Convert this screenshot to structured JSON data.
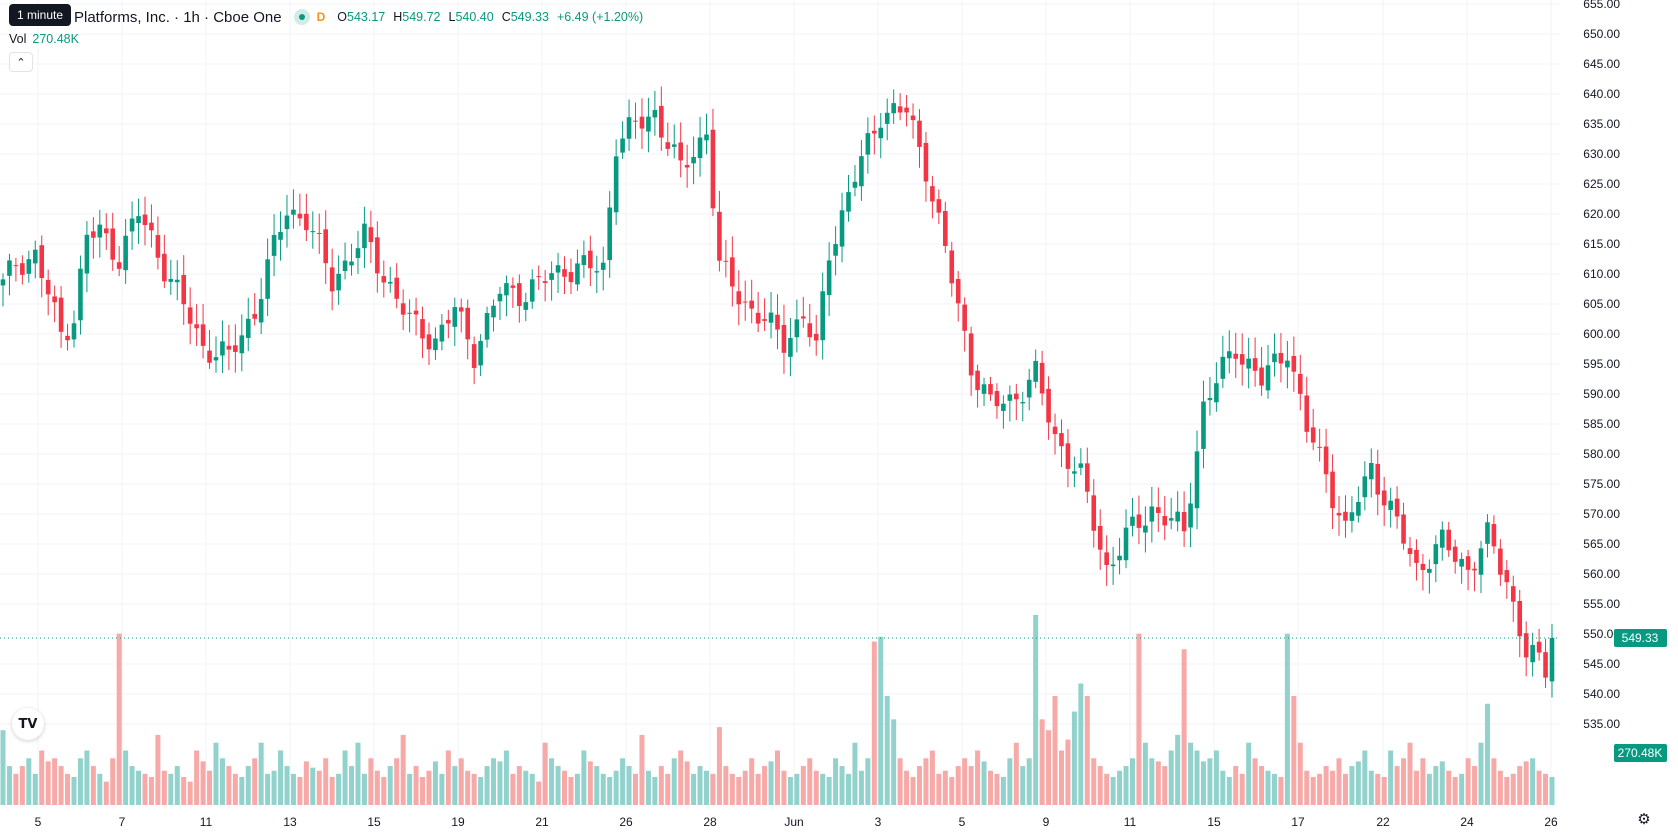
{
  "header": {
    "tooltip": "1 minute",
    "symbol_title": "Platforms, Inc. · 1h · Cboe One",
    "delay_badge": "D",
    "open_label": "O",
    "open_value": "543.17",
    "high_label": "H",
    "high_value": "549.72",
    "low_label": "L",
    "low_value": "540.40",
    "close_label": "C",
    "close_value": "549.33",
    "change": "+6.49 (+1.20%)"
  },
  "volume_legend": {
    "label": "Vol",
    "value": "270.48K"
  },
  "collapse_icon": "chevron-up-icon",
  "logo": "tradingview-logo",
  "settings_icon": "gear-icon",
  "colors": {
    "up": "#089981",
    "down": "#f23645",
    "up_volume": "#92d2cc",
    "down_volume": "#f7a9a7",
    "grid": "#f0f3fa"
  },
  "chart_data": {
    "type": "candlestick",
    "interval": "1h",
    "y_ticks": [
      "655.00",
      "650.00",
      "645.00",
      "640.00",
      "635.00",
      "630.00",
      "625.00",
      "620.00",
      "615.00",
      "610.00",
      "605.00",
      "600.00",
      "595.00",
      "590.00",
      "585.00",
      "580.00",
      "575.00",
      "570.00",
      "565.00",
      "560.00",
      "555.00",
      "550.00",
      "545.00",
      "540.00",
      "535.00"
    ],
    "ylim": [
      532,
      657
    ],
    "x_ticks": [
      "5",
      "7",
      "11",
      "13",
      "15",
      "19",
      "21",
      "26",
      "28",
      "Jun",
      "3",
      "5",
      "9",
      "11",
      "15",
      "17",
      "22",
      "24",
      "26"
    ],
    "last_price": "549.33",
    "last_volume": "270.48K",
    "price_anchors": [
      [
        0,
        608
      ],
      [
        2,
        612
      ],
      [
        5,
        613
      ],
      [
        9,
        600
      ],
      [
        11,
        603
      ],
      [
        13,
        616
      ],
      [
        15,
        617
      ],
      [
        18,
        613
      ],
      [
        21,
        620
      ],
      [
        23,
        616
      ],
      [
        26,
        609
      ],
      [
        31,
        598
      ],
      [
        35,
        596
      ],
      [
        39,
        604
      ],
      [
        44,
        621
      ],
      [
        47,
        619
      ],
      [
        51,
        609
      ],
      [
        56,
        616
      ],
      [
        59,
        610
      ],
      [
        63,
        602
      ],
      [
        67,
        599
      ],
      [
        70,
        604
      ],
      [
        73,
        597
      ],
      [
        77,
        607
      ],
      [
        81,
        607
      ],
      [
        87,
        611
      ],
      [
        93,
        611
      ],
      [
        95,
        632
      ],
      [
        101,
        637
      ],
      [
        105,
        627
      ],
      [
        109,
        634
      ],
      [
        111,
        611
      ],
      [
        116,
        604
      ],
      [
        121,
        599
      ],
      [
        124,
        603
      ],
      [
        126,
        597
      ],
      [
        128,
        614
      ],
      [
        132,
        626
      ],
      [
        136,
        637
      ],
      [
        140,
        637
      ],
      [
        143,
        628
      ],
      [
        147,
        609
      ],
      [
        150,
        595
      ],
      [
        153,
        588
      ],
      [
        156,
        589
      ],
      [
        160,
        593
      ],
      [
        163,
        583
      ],
      [
        167,
        576
      ],
      [
        171,
        561
      ],
      [
        174,
        566
      ],
      [
        178,
        571
      ],
      [
        183,
        567
      ],
      [
        186,
        588
      ],
      [
        191,
        598
      ],
      [
        195,
        592
      ],
      [
        199,
        598
      ],
      [
        202,
        584
      ],
      [
        205,
        577
      ],
      [
        208,
        567
      ],
      [
        212,
        578
      ],
      [
        216,
        568
      ],
      [
        219,
        561
      ],
      [
        223,
        565
      ],
      [
        227,
        561
      ],
      [
        230,
        566
      ],
      [
        233,
        559
      ],
      [
        236,
        547
      ],
      [
        239,
        544
      ],
      [
        240,
        549
      ]
    ],
    "volume_values": [
      48,
      25,
      20,
      25,
      30,
      20,
      35,
      28,
      30,
      25,
      20,
      18,
      30,
      35,
      25,
      20,
      15,
      30,
      110,
      35,
      25,
      22,
      20,
      18,
      45,
      22,
      20,
      25,
      18,
      15,
      35,
      28,
      22,
      40,
      30,
      25,
      20,
      18,
      25,
      30,
      40,
      20,
      22,
      35,
      25,
      20,
      18,
      28,
      24,
      22,
      30,
      18,
      20,
      35,
      25,
      40,
      20,
      30,
      22,
      18,
      25,
      30,
      45,
      20,
      25,
      18,
      22,
      28,
      20,
      35,
      25,
      30,
      22,
      20,
      18,
      25,
      30,
      28,
      35,
      20,
      25,
      22,
      20,
      15,
      40,
      30,
      25,
      22,
      18,
      20,
      35,
      28,
      25,
      20,
      18,
      22,
      30,
      25,
      20,
      45,
      22,
      18,
      25,
      20,
      30,
      35,
      28,
      20,
      25,
      22,
      20,
      50,
      25,
      20,
      18,
      22,
      30,
      20,
      25,
      28,
      35,
      22,
      18,
      20,
      25,
      30,
      22,
      20,
      18,
      30,
      25,
      20,
      40,
      22,
      30,
      105,
      108,
      70,
      55,
      30,
      22,
      18,
      25,
      30,
      35,
      20,
      22,
      18,
      25,
      30,
      25,
      35,
      28,
      22,
      20,
      18,
      30,
      40,
      25,
      30,
      122,
      55,
      48,
      70,
      35,
      42,
      60,
      78,
      70,
      30,
      25,
      20,
      18,
      22,
      25,
      30,
      110,
      40,
      30,
      28,
      25,
      35,
      45,
      100,
      40,
      35,
      28,
      30,
      35,
      22,
      18,
      25,
      20,
      40,
      30,
      25,
      22,
      20,
      18,
      110,
      70,
      40,
      22,
      18,
      20,
      25,
      22,
      30,
      20,
      25,
      28,
      35,
      22,
      20,
      18,
      35,
      25,
      30,
      40,
      22,
      30,
      20,
      25,
      28,
      22,
      18,
      20,
      30,
      25,
      40,
      65,
      30,
      22,
      18,
      20,
      25,
      28,
      30,
      22,
      20,
      18,
      25,
      30,
      22,
      35,
      25,
      20,
      18,
      22,
      30,
      25,
      20,
      35,
      50
    ]
  }
}
